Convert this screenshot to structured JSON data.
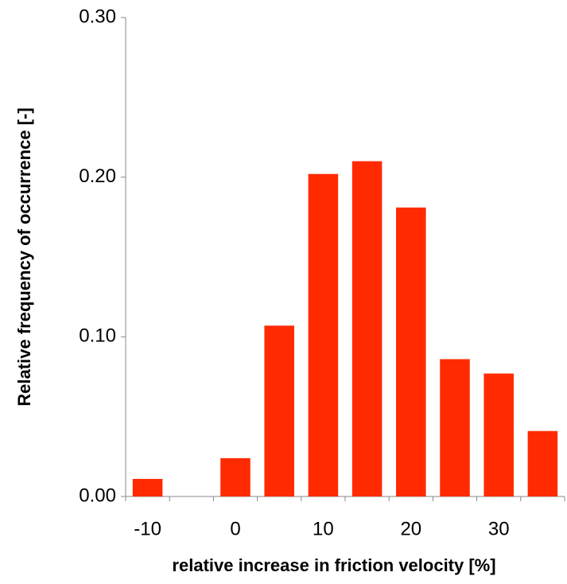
{
  "chart_data": {
    "type": "bar",
    "x_label": "relative increase in friction velocity [%]",
    "y_label": "Relative frequency of occurrence [-]",
    "categories": [
      "-10",
      null,
      "0",
      null,
      "10",
      null,
      "20",
      null,
      "30",
      null
    ],
    "values": [
      0.011,
      0,
      0.024,
      0.107,
      0.202,
      0.21,
      0.181,
      0.086,
      0.077,
      0.041
    ],
    "color": "#ff2a00",
    "ylim": [
      0,
      0.3
    ],
    "yticks": [
      {
        "value": 0,
        "label": "0.00"
      },
      {
        "value": 0.1,
        "label": "0.10"
      },
      {
        "value": 0.2,
        "label": "0.20"
      },
      {
        "value": 0.3,
        "label": "0.30"
      }
    ],
    "grid": false
  }
}
